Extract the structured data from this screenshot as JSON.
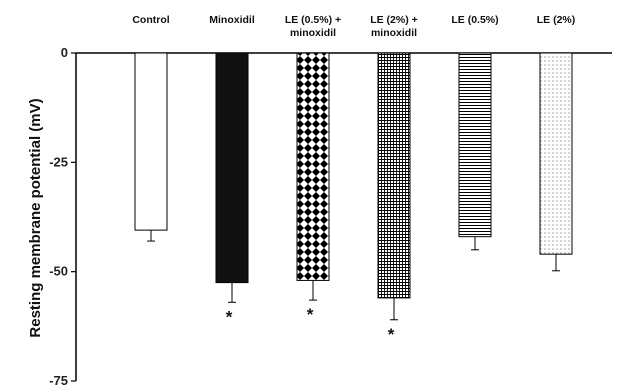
{
  "chart_data": {
    "type": "bar",
    "title": "",
    "xlabel": "",
    "ylabel": "Resting membrane potential (mV)",
    "ylim": [
      -75,
      0
    ],
    "yticks": [
      0,
      -25,
      -50,
      -75
    ],
    "ytick_labels": [
      "0",
      "-25",
      "-50",
      "-75"
    ],
    "categories": [
      [
        "Control"
      ],
      [
        "Minoxidil"
      ],
      [
        "LE (0.5%) +",
        "minoxidil"
      ],
      [
        "LE (2%) +",
        "minoxidil"
      ],
      [
        "LE (0.5%)"
      ],
      [
        "LE (2%)"
      ]
    ],
    "values": [
      -40.5,
      -52.5,
      -52.0,
      -56.0,
      -42.0,
      -46.0
    ],
    "errors": [
      2.5,
      4.5,
      4.5,
      5.0,
      3.0,
      3.8
    ],
    "significance": [
      "",
      "*",
      "*",
      "*",
      "",
      ""
    ],
    "patterns": [
      "white",
      "black",
      "checker-diamond",
      "grid",
      "horizontal-lines",
      "dots"
    ],
    "grid": false,
    "legend": "none"
  }
}
